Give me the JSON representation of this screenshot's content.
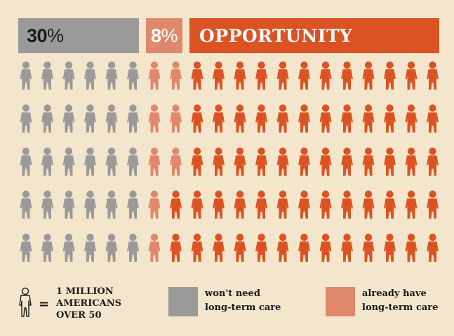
{
  "header": {
    "segments": [
      {
        "value": "30",
        "symbol": "%",
        "color": "#9a9a98"
      },
      {
        "value": "8",
        "symbol": "%",
        "color": "#e0886b"
      },
      {
        "label": "OPPORTUNITY",
        "color": "#dc5323"
      }
    ]
  },
  "chart_data": {
    "type": "pictograph",
    "rows": 5,
    "columns": 20,
    "total_icons": 100,
    "categories": [
      "won't need long-term care",
      "already have long-term care",
      "OPPORTUNITY"
    ],
    "values": [
      30,
      8,
      62
    ],
    "colors": [
      "#9a9a98",
      "#e0886b",
      "#dc5323"
    ]
  },
  "legend": {
    "unit_lines": [
      "1 MILLION",
      "AMERICANS",
      "OVER 50"
    ],
    "equals": "=",
    "items": [
      {
        "line1": "won't need",
        "line2": "long-term care",
        "color": "#9a9a98"
      },
      {
        "line1": "already have",
        "line2": "long-term care",
        "color": "#e0886b"
      }
    ]
  }
}
